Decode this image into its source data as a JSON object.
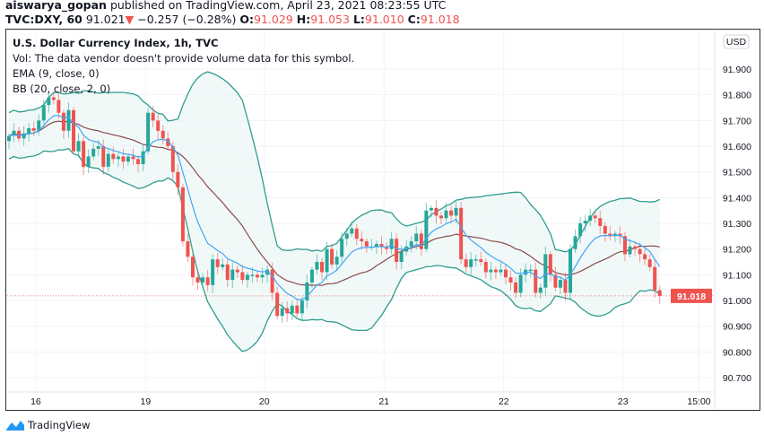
{
  "header": {
    "user": "aiswarya_gopan",
    "published": "published on TradingView.com, April 23, 2021 08:23:55 UTC",
    "symbol": "TVC:DXY, 60",
    "last": "91.021",
    "change": "−0.257 (−0.28%)",
    "o_label": "O:",
    "o": "91.029",
    "h_label": "H:",
    "h": "91.053",
    "l_label": "L:",
    "l": "91.010",
    "c_label": "C:",
    "c": "91.018",
    "down_icon": "triangle-down-icon"
  },
  "legend": {
    "title": "U.S. Dollar Currency Index, 1h, TVC",
    "vol": "Vol: The data vendor doesn't provide volume data for this symbol.",
    "ema": "EMA (9, close, 0)",
    "bb": "BB (20, close, 2, 0)"
  },
  "footer": {
    "brand": "TradingView",
    "logo_icon": "tradingview-logo-icon"
  },
  "colors": {
    "up": "#26a69a",
    "down": "#ef5350",
    "ema": "#42a5f5",
    "bb_basis": "#8b4a48",
    "bb_band": "#2f9d8e",
    "bb_fill": "#e8f5f3",
    "last_price": "#ef5350"
  },
  "chart_data": {
    "type": "candlestick",
    "title": "U.S. Dollar Currency Index, 1h, TVC",
    "interval": "1h",
    "currency": "USD",
    "ylim": [
      90.65,
      91.98
    ],
    "y_ticks": [
      "91.900",
      "91.800",
      "91.700",
      "91.600",
      "91.500",
      "91.400",
      "91.300",
      "91.200",
      "91.100",
      "91.000",
      "90.900",
      "90.800",
      "90.700"
    ],
    "x_ticks": [
      "16",
      "19",
      "20",
      "21",
      "22",
      "23",
      "15:00"
    ],
    "last_price_label": "91.018",
    "grid": true,
    "indicators": [
      "EMA (9, close, 0)",
      "BB (20, close, 2, 0)"
    ],
    "closes": [
      91.64,
      91.66,
      91.63,
      91.65,
      91.67,
      91.66,
      91.7,
      91.76,
      91.79,
      91.78,
      91.73,
      91.66,
      91.74,
      91.58,
      91.62,
      91.52,
      91.56,
      91.59,
      91.6,
      91.52,
      91.57,
      91.55,
      91.56,
      91.54,
      91.56,
      91.55,
      91.53,
      91.58,
      91.73,
      91.7,
      91.66,
      91.63,
      91.6,
      91.5,
      91.44,
      91.23,
      91.17,
      91.09,
      91.07,
      91.09,
      91.06,
      91.16,
      91.13,
      91.14,
      91.08,
      91.12,
      91.11,
      91.08,
      91.1,
      91.1,
      91.09,
      91.1,
      91.12,
      91.03,
      90.94,
      90.97,
      90.95,
      90.98,
      90.95,
      91.0,
      91.07,
      91.12,
      91.15,
      91.11,
      91.2,
      91.14,
      91.17,
      91.24,
      91.26,
      91.28,
      91.24,
      91.23,
      91.21,
      91.21,
      91.22,
      91.21,
      91.2,
      91.24,
      91.15,
      91.19,
      91.21,
      91.23,
      91.26,
      91.2,
      91.35,
      91.36,
      91.33,
      91.32,
      91.35,
      91.33,
      91.36,
      91.16,
      91.13,
      91.16,
      91.16,
      91.15,
      91.11,
      91.12,
      91.11,
      91.12,
      91.09,
      91.07,
      91.03,
      91.1,
      91.12,
      91.12,
      91.03,
      91.05,
      91.18,
      91.1,
      91.05,
      91.08,
      91.03,
      91.2,
      91.25,
      91.3,
      91.31,
      91.33,
      91.32,
      91.29,
      91.26,
      91.25,
      91.26,
      91.25,
      91.18,
      91.21,
      91.2,
      91.18,
      91.16,
      91.13,
      91.04,
      91.018
    ],
    "first_open": 91.62
  }
}
